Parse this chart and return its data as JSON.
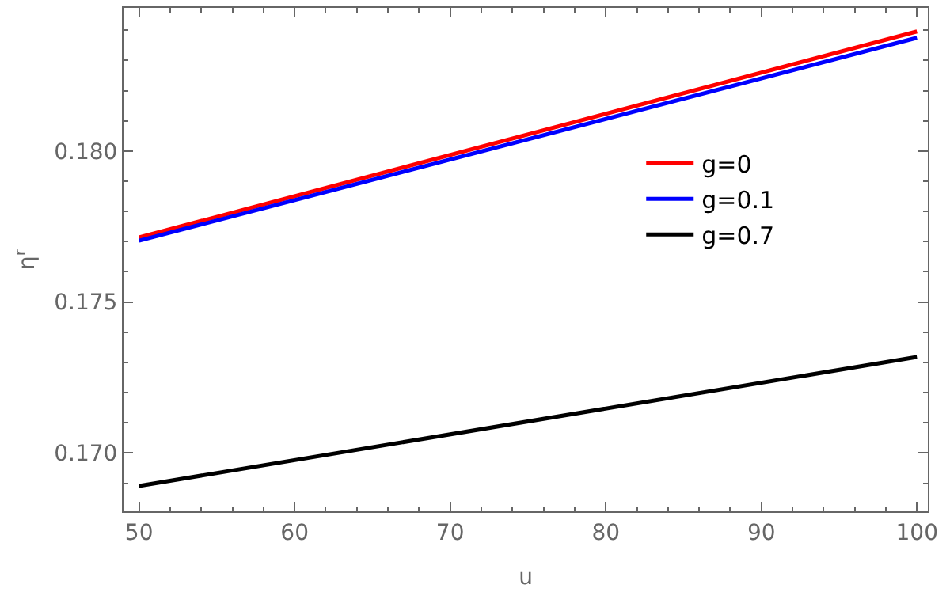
{
  "chart_data": {
    "type": "line",
    "xlabel": "u",
    "ylabel": "η$^{r}$",
    "x": [
      50,
      100
    ],
    "series": [
      {
        "name": "g=0",
        "color": "#ff0000",
        "values": [
          0.17714,
          0.18396
        ]
      },
      {
        "name": "g=0.1",
        "color": "#0000ff",
        "values": [
          0.17703,
          0.18375
        ]
      },
      {
        "name": "g=0.7",
        "color": "#000000",
        "values": [
          0.16891,
          0.17318
        ]
      }
    ],
    "xlim": [
      49,
      100.7
    ],
    "xticks": [
      50,
      60,
      70,
      80,
      90,
      100
    ],
    "ylim": [
      0.16807,
      0.18474
    ],
    "yticks": [
      {
        "value": 0.17,
        "label": "0.170"
      },
      {
        "value": 0.175,
        "label": "0.175"
      },
      {
        "value": 0.18,
        "label": "0.180"
      }
    ],
    "legend": "right",
    "marker": "none",
    "line_style": "solid"
  }
}
